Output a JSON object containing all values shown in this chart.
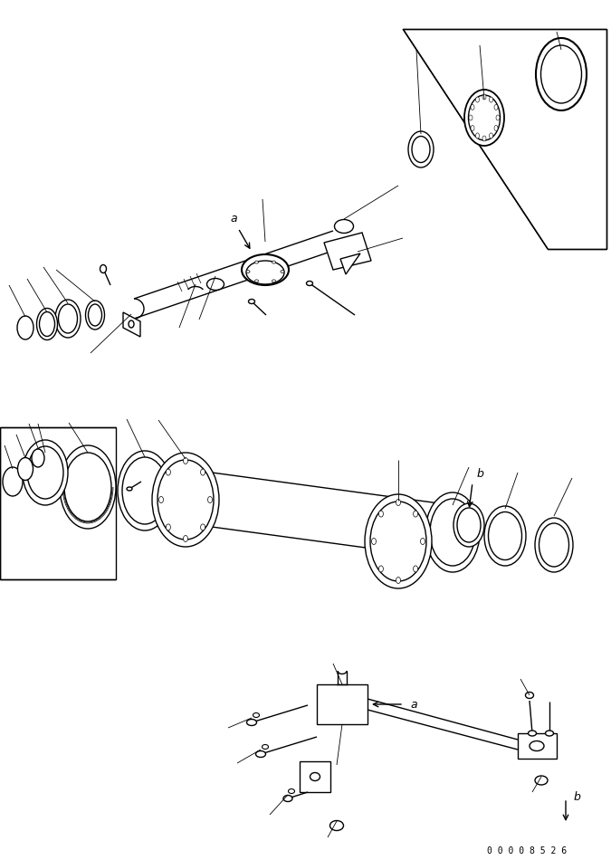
{
  "bg_color": "#ffffff",
  "lc": "#000000",
  "lw": 1.0,
  "tlw": 0.6,
  "figsize": [
    6.75,
    9.5
  ],
  "dpi": 100,
  "watermark": "0 0 0 0 8 5 2 6",
  "label_a1": "a",
  "label_b1": "b",
  "label_a2": "a",
  "label_b2": "b"
}
